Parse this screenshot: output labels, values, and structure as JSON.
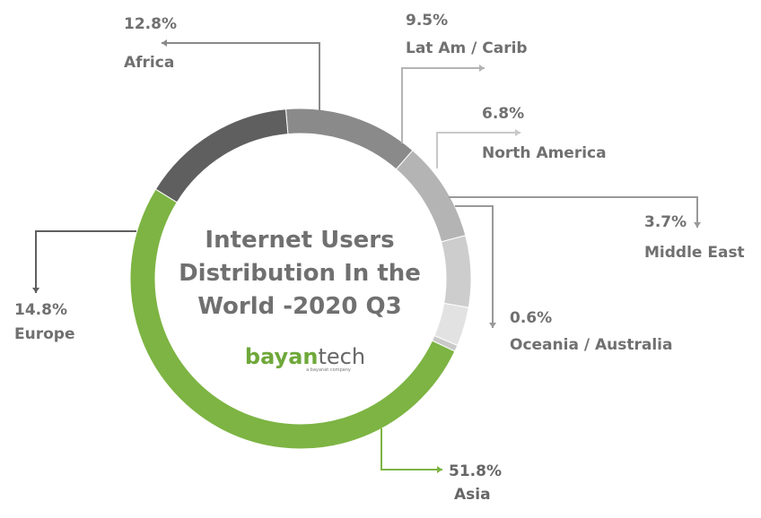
{
  "chart_data": {
    "type": "pie",
    "title_lines": [
      "Internet Users",
      "Distribution In the",
      "World -2020 Q3"
    ],
    "slices": [
      {
        "label": "Africa",
        "value": 12.8,
        "display": "12.8%",
        "color": "#8a8a8a"
      },
      {
        "label": "Lat Am / Carib",
        "value": 9.5,
        "display": "9.5%",
        "color": "#b4b4b4"
      },
      {
        "label": "North America",
        "value": 6.8,
        "display": "6.8%",
        "color": "#cdcdcd"
      },
      {
        "label": "Middle East",
        "value": 3.7,
        "display": "3.7%",
        "color": "#e2e2e2"
      },
      {
        "label": "Oceania / Australia",
        "value": 0.6,
        "display": "0.6%",
        "color": "#c9c9c9"
      },
      {
        "label": "Asia",
        "value": 51.8,
        "display": "51.8%",
        "color": "#7db443"
      },
      {
        "label": "Europe",
        "value": 14.8,
        "display": "14.8%",
        "color": "#5f5f5f"
      }
    ]
  },
  "logo": {
    "part1": "bayan",
    "part2": "tech",
    "tagline": "a bayanat company"
  }
}
